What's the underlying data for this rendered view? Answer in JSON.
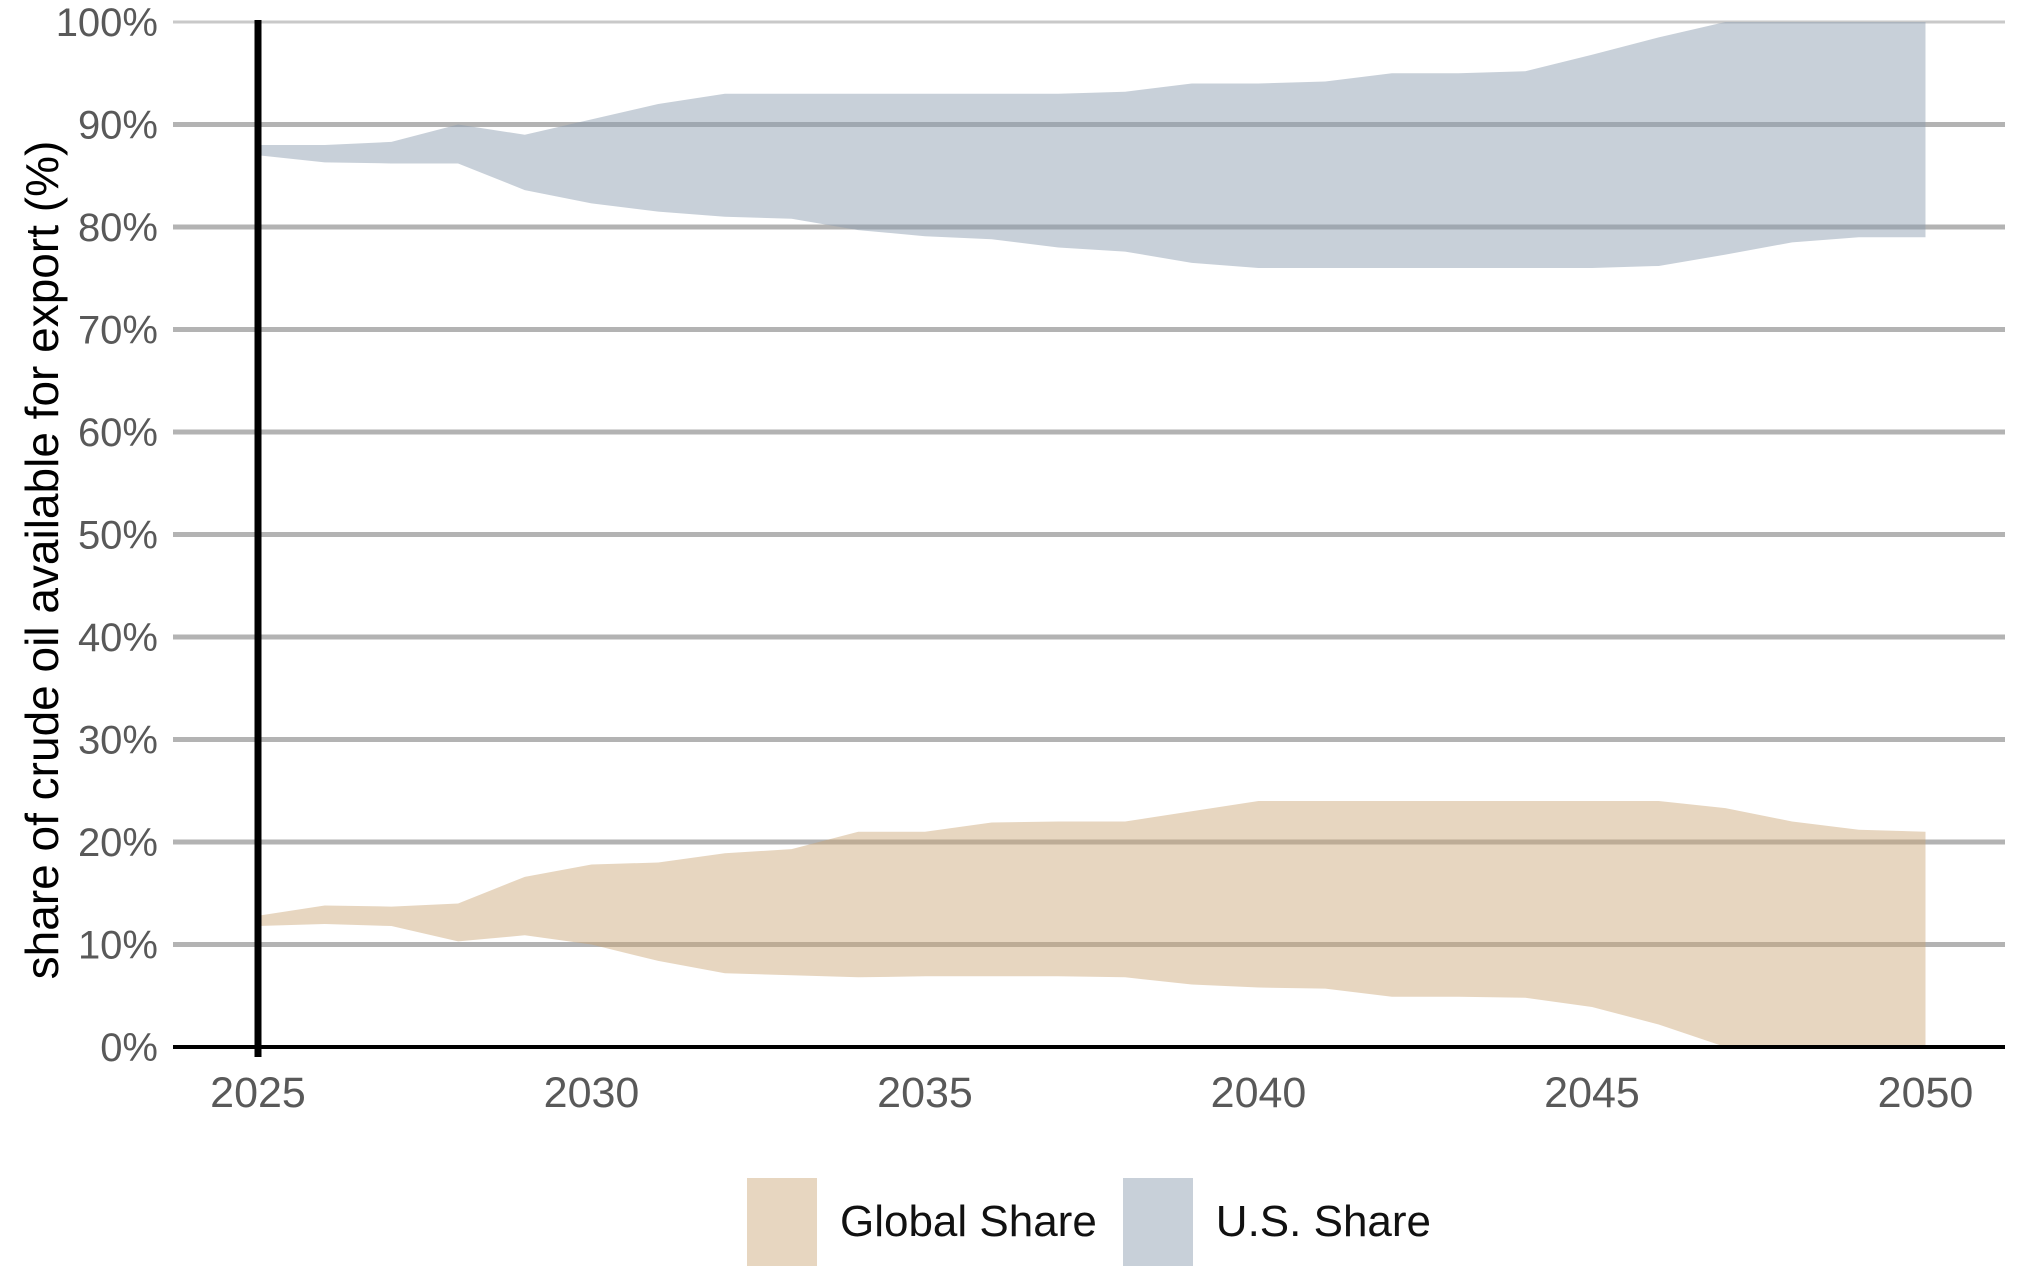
{
  "page": {
    "background": "#ffffff"
  },
  "y_axis": {
    "title": "share of crude oil available for export (%)",
    "tick_labels": [
      "0%",
      "10%",
      "20%",
      "30%",
      "40%",
      "50%",
      "60%",
      "70%",
      "80%",
      "90%",
      "100%"
    ],
    "tick_values": [
      0,
      10,
      20,
      30,
      40,
      50,
      60,
      70,
      80,
      90,
      100
    ],
    "tick_color": "#595959",
    "title_color": "#000000"
  },
  "x_axis": {
    "tick_labels": [
      "2025",
      "2030",
      "2035",
      "2040",
      "2045",
      "2050"
    ],
    "tick_values": [
      2025,
      2030,
      2035,
      2040,
      2045,
      2050
    ],
    "tick_color": "#595959"
  },
  "legend": {
    "items": [
      {
        "label": "Global Share"
      },
      {
        "label": "U.S. Share"
      }
    ]
  },
  "chart_data": {
    "type": "area",
    "title": "",
    "xlabel": "",
    "ylabel": "share of crude oil available for export (%)",
    "xlim": [
      2025,
      2050
    ],
    "ylim": [
      0,
      100
    ],
    "grid": true,
    "legend_position": "bottom",
    "reference_line_x": 2025,
    "gridline_color": "#b3b3b3",
    "gridline_top_color": "#c9c9c9",
    "axis_line_color": "#000000",
    "reference_line_color": "#000000",
    "x": [
      2025,
      2026,
      2027,
      2028,
      2029,
      2030,
      2031,
      2032,
      2033,
      2034,
      2035,
      2036,
      2037,
      2038,
      2039,
      2040,
      2041,
      2042,
      2043,
      2044,
      2045,
      2046,
      2047,
      2048,
      2049,
      2050
    ],
    "series": [
      {
        "name": "Global Share",
        "color": "rgba(201,165,115,0.45)",
        "upper": [
          12.8,
          13.8,
          13.7,
          14,
          16.6,
          17.8,
          18,
          18.9,
          19.3,
          21,
          21,
          21.9,
          22,
          22,
          23,
          24,
          24,
          24,
          24,
          24,
          24,
          24,
          23.3,
          22,
          21.2,
          21
        ],
        "lower": [
          11.8,
          12,
          11.8,
          10.3,
          10.9,
          10,
          8.4,
          7.2,
          7,
          6.8,
          6.9,
          6.9,
          6.9,
          6.8,
          6.1,
          5.8,
          5.7,
          4.9,
          4.9,
          4.8,
          3.9,
          2.2,
          0,
          0,
          0,
          0
        ]
      },
      {
        "name": "U.S. Share",
        "color": "rgba(141,157,176,0.48)",
        "upper": [
          88,
          88,
          88.3,
          90,
          89,
          90.5,
          92,
          93,
          93,
          93,
          93,
          93,
          93,
          93.2,
          94,
          94,
          94.2,
          95,
          95,
          95.2,
          96.8,
          98.5,
          100,
          100,
          100,
          100
        ],
        "lower": [
          87,
          86.3,
          86.2,
          86.2,
          83.6,
          82.3,
          81.5,
          81,
          80.8,
          79.7,
          79.1,
          78.8,
          78,
          77.6,
          76.5,
          76,
          76,
          76,
          76,
          76,
          76,
          76.2,
          77.3,
          78.5,
          79,
          79
        ]
      }
    ]
  }
}
